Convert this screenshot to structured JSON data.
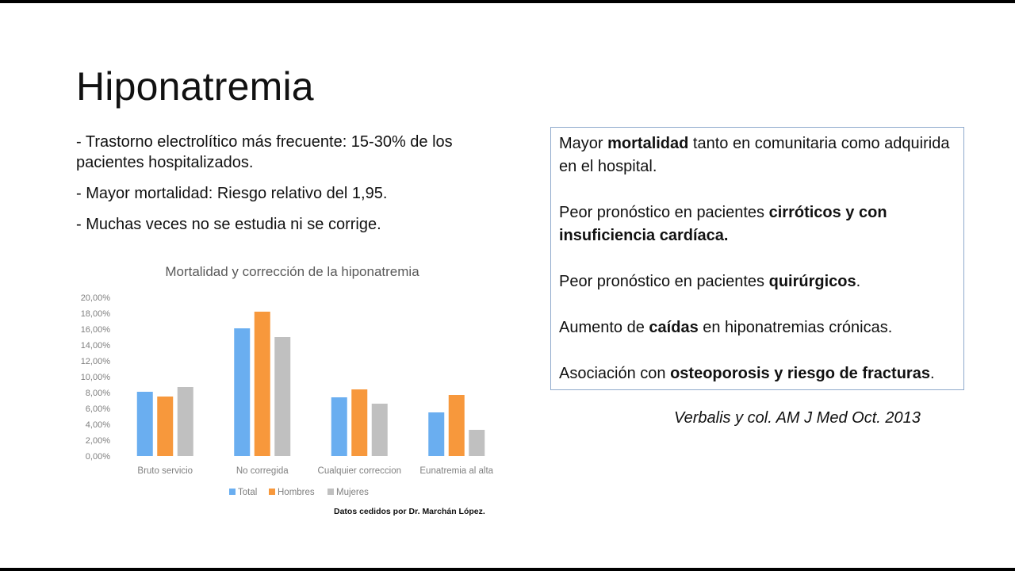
{
  "slide": {
    "title": "Hiponatremia",
    "bullets": [
      "- Trastorno electrolítico más frecuente: 15-30% de los pacientes hospitalizados.",
      "- Mayor mortalidad: Riesgo relativo del 1,95.",
      "- Muchas veces no se estudia ni se corrige."
    ],
    "credit": "Datos cedidos por Dr. Marchán López.",
    "box": {
      "p1": {
        "a": "Mayor ",
        "b": "mortalidad",
        "c": " tanto en comunitaria como adquirida en el hospital."
      },
      "p2": {
        "a": "Peor pronóstico en pacientes ",
        "b": "cirróticos y con insuficiencia cardíaca.",
        "c": ""
      },
      "p3": {
        "a": "Peor pronóstico en pacientes ",
        "b": "quirúrgicos",
        "c": "."
      },
      "p4": {
        "a": "Aumento de ",
        "b": "caídas",
        "c": " en hiponatremias crónicas."
      },
      "p5": {
        "a": "Asociación con ",
        "b": "osteoporosis y riesgo de fracturas",
        "c": "."
      }
    },
    "citation": "Verbalis y col. AM J Med  Oct. 2013"
  },
  "chart_data": {
    "type": "bar",
    "title": "Mortalidad y corrección de la hiponatremia",
    "categories": [
      "Bruto servicio",
      "No corregida",
      "Cualquier correccion",
      "Eunatremia al alta"
    ],
    "series": [
      {
        "name": "Total",
        "color": "#6aaef0",
        "values": [
          8.1,
          16.1,
          7.4,
          5.5
        ]
      },
      {
        "name": "Hombres",
        "color": "#f7983c",
        "values": [
          7.5,
          18.2,
          8.4,
          7.7
        ]
      },
      {
        "name": "Mujeres",
        "color": "#c0c0c0",
        "values": [
          8.7,
          15.0,
          6.6,
          3.3
        ]
      }
    ],
    "ylim": [
      0,
      20
    ],
    "y_ticks": [
      "0,00%",
      "2,00%",
      "4,00%",
      "6,00%",
      "8,00%",
      "10,00%",
      "12,00%",
      "14,00%",
      "16,00%",
      "18,00%",
      "20,00%"
    ],
    "grid": false,
    "legend": "bottom"
  }
}
